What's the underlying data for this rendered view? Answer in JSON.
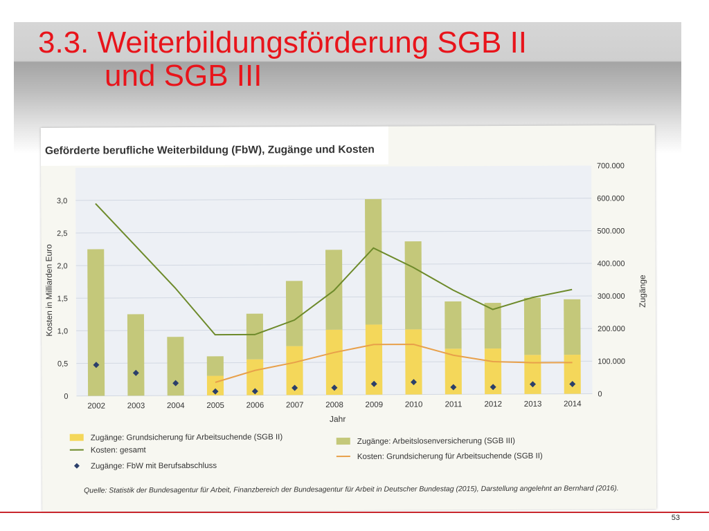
{
  "slide": {
    "title_line1": "3.3. Weiterbildungsförderung SGB II",
    "title_line2": "und SGB III",
    "page_number": "53",
    "title_color": "#e8141b"
  },
  "chart_data": {
    "type": "bar",
    "title": "Geförderte berufliche Weiterbildung (FbW), Zugänge und Kosten",
    "xlabel": "Jahr",
    "ylabel": "Kosten in Milliarden Euro",
    "y2label": "Zugänge",
    "categories": [
      "2002",
      "2003",
      "2004",
      "2005",
      "2006",
      "2007",
      "2008",
      "2009",
      "2010",
      "2011",
      "2012",
      "2013",
      "2014"
    ],
    "ylim": [
      0,
      3.5
    ],
    "y2lim": [
      0,
      700000
    ],
    "yticks": [
      "0",
      "0,5",
      "1,0",
      "1,5",
      "2,0",
      "2,5",
      "3,0"
    ],
    "y2ticks": [
      "0",
      "100.000",
      "200.000",
      "300.000",
      "400.000",
      "500.000",
      "600.000",
      "700.000"
    ],
    "grid": true,
    "stacked": true,
    "series": [
      {
        "name": "Zugänge: Grundsicherung für Arbeitsuchende (SGB II)",
        "type": "bar",
        "axis": "right",
        "color": "#f4d75a",
        "values": [
          0,
          0,
          0,
          60000,
          110000,
          150000,
          200000,
          215000,
          200000,
          140000,
          140000,
          120000,
          120000
        ]
      },
      {
        "name": "Zugänge: Arbeitslosenversicherung (SGB III)",
        "type": "bar",
        "axis": "right",
        "color": "#c4c87a",
        "values": [
          450000,
          250000,
          180000,
          60000,
          140000,
          200000,
          245000,
          385000,
          270000,
          145000,
          140000,
          175000,
          170000
        ]
      },
      {
        "name": "Kosten: gesamt",
        "type": "line",
        "axis": "left",
        "color": "#6d8a2a",
        "values": [
          2.95,
          2.3,
          1.65,
          0.93,
          0.93,
          1.15,
          1.6,
          2.25,
          1.95,
          1.6,
          1.3,
          1.48,
          1.6
        ]
      },
      {
        "name": "Kosten: Grundsicherung für Arbeitsuchende (SGB II)",
        "type": "line",
        "axis": "left",
        "color": "#e8a04a",
        "values": [
          null,
          null,
          null,
          0.2,
          0.38,
          0.5,
          0.65,
          0.77,
          0.77,
          0.6,
          0.5,
          0.48,
          0.48
        ]
      },
      {
        "name": "Zugänge: FbW mit Berufsabschluss",
        "type": "scatter",
        "axis": "right",
        "color": "#2b3f6a",
        "values": [
          95000,
          70000,
          38000,
          12000,
          12000,
          22000,
          22000,
          33000,
          38000,
          22000,
          22000,
          30000,
          30000
        ]
      }
    ],
    "legend_position": "bottom",
    "source": "Quelle: Statistik der Bundesagentur für Arbeit, Finanzbereich der Bundesagentur für Arbeit in Deutscher Bundestag (2015), Darstellung angelehnt an Bernhard (2016)."
  }
}
